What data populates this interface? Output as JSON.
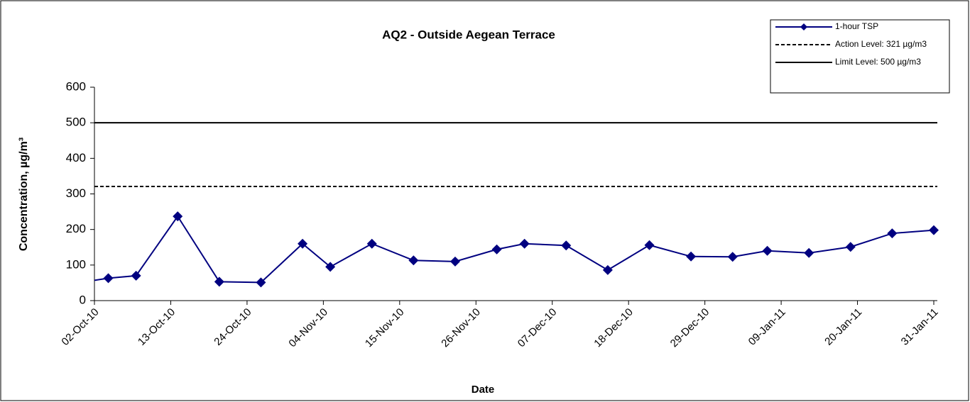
{
  "chart_data": {
    "type": "line",
    "title": "AQ2 - Outside Aegean Terrace",
    "x_label": "Date",
    "y_label": "Concentration, µg/m³",
    "x": [
      "2010-09-28",
      "2010-10-04",
      "2010-10-08",
      "2010-10-14",
      "2010-10-20",
      "2010-10-26",
      "2010-11-01",
      "2010-11-05",
      "2010-11-11",
      "2010-11-17",
      "2010-11-23",
      "2010-11-29",
      "2010-12-03",
      "2010-12-09",
      "2010-12-15",
      "2010-12-21",
      "2010-12-27",
      "2011-01-02",
      "2011-01-07",
      "2011-01-13",
      "2011-01-19",
      "2011-01-25",
      "2011-01-31"
    ],
    "series": [
      {
        "name": "1-hour TSP",
        "color": "#000080",
        "marker": "diamond",
        "values": [
          45,
          63,
          70,
          237,
          53,
          51,
          160,
          95,
          160,
          113,
          110,
          144,
          160,
          155,
          86,
          156,
          124,
          123,
          140,
          134,
          151,
          189,
          198
        ]
      }
    ],
    "reference_lines": [
      {
        "name": "Action Level: 321 µg/m3",
        "value": 321,
        "color": "#000000",
        "style": "dashed"
      },
      {
        "name": "Limit Level: 500 µg/m3",
        "value": 500,
        "color": "#000000",
        "style": "solid"
      }
    ],
    "xlim": [
      "2010-10-02",
      "2011-01-31"
    ],
    "xticks": [
      {
        "value": "2010-10-02",
        "label": "02-Oct-10"
      },
      {
        "value": "2010-10-13",
        "label": "13-Oct-10"
      },
      {
        "value": "2010-10-24",
        "label": "24-Oct-10"
      },
      {
        "value": "2010-11-04",
        "label": "04-Nov-10"
      },
      {
        "value": "2010-11-15",
        "label": "15-Nov-10"
      },
      {
        "value": "2010-11-26",
        "label": "26-Nov-10"
      },
      {
        "value": "2010-12-07",
        "label": "07-Dec-10"
      },
      {
        "value": "2010-12-18",
        "label": "18-Dec-10"
      },
      {
        "value": "2010-12-29",
        "label": "29-Dec-10"
      },
      {
        "value": "2011-01-09",
        "label": "09-Jan-11"
      },
      {
        "value": "2011-01-20",
        "label": "20-Jan-11"
      },
      {
        "value": "2011-01-31",
        "label": "31-Jan-11"
      }
    ],
    "ylim": [
      0,
      600
    ],
    "yticks": [
      0,
      100,
      200,
      300,
      400,
      500,
      600
    ],
    "grid": false,
    "legend": "top-right"
  }
}
